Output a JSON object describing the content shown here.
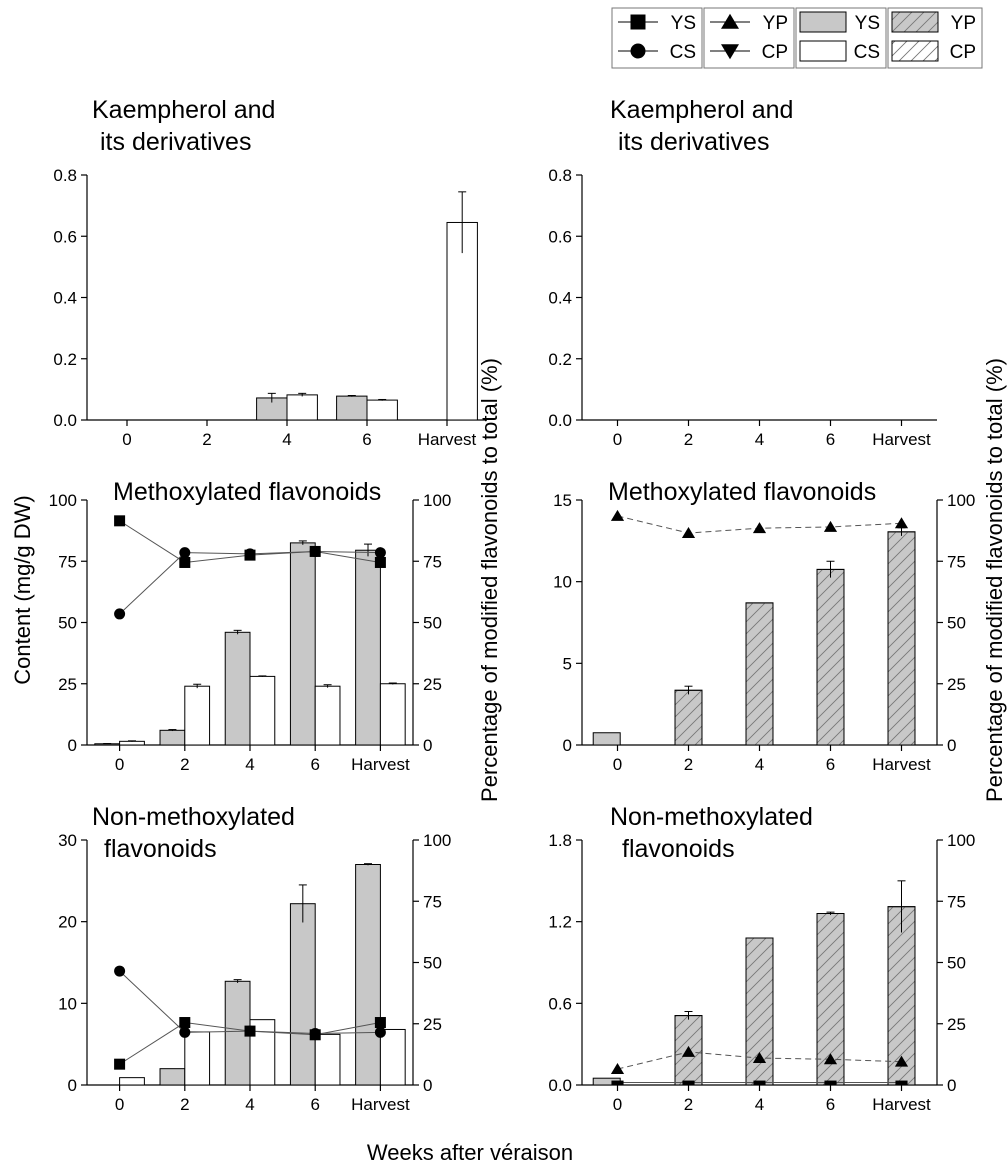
{
  "figure": {
    "xlabel": "Weeks after véraison",
    "left_ylabel": "Content (mg/g DW)",
    "right_ylabel": "Percentage of modified flavonoids to total (%)"
  },
  "legend": {
    "placement": "top-right",
    "entries": [
      {
        "label": "YS",
        "kind": "line",
        "marker": "square"
      },
      {
        "label": "CS",
        "kind": "line",
        "marker": "circle"
      },
      {
        "label": "YP",
        "kind": "line",
        "marker": "triangle-up"
      },
      {
        "label": "CP",
        "kind": "line",
        "marker": "triangle-down"
      },
      {
        "label": "YS",
        "kind": "bar",
        "fill": "#c8c8c8"
      },
      {
        "label": "CS",
        "kind": "bar",
        "fill": "#ffffff"
      },
      {
        "label": "YP",
        "kind": "bar",
        "fill": "#c8c8c8",
        "hatch": true
      },
      {
        "label": "CP",
        "kind": "bar",
        "fill": "#ffffff",
        "hatch": true
      }
    ]
  },
  "colors": {
    "bar_gray": "#c8c8c8",
    "bar_white": "#ffffff",
    "stroke": "#000000",
    "line_gray": "#555555"
  },
  "chart_data": [
    {
      "type": "bar",
      "title": "Kaempherol and\nits derivatives",
      "categories": [
        "0",
        "2",
        "4",
        "6",
        "Harvest"
      ],
      "ylim": [
        0,
        0.8
      ],
      "yticks": [
        "0.0",
        "0.2",
        "0.4",
        "0.6",
        "0.8"
      ],
      "bars": [
        {
          "name": "YS",
          "values": [
            0,
            0,
            0.072,
            0.078,
            0
          ],
          "errors": [
            0,
            0,
            0.015,
            0.002,
            0
          ]
        },
        {
          "name": "CS",
          "values": [
            0,
            0,
            0.082,
            0.065,
            0.645
          ],
          "errors": [
            0,
            0,
            0.005,
            0.002,
            0.1
          ]
        }
      ]
    },
    {
      "type": "bar",
      "title": "Kaempherol and\nits derivatives",
      "categories": [
        "0",
        "2",
        "4",
        "6",
        "Harvest"
      ],
      "ylim": [
        0,
        0.8
      ],
      "yticks": [
        "0.0",
        "0.2",
        "0.4",
        "0.6",
        "0.8"
      ],
      "bars": []
    },
    {
      "type": "bar",
      "title": "Methoxylated flavonoids",
      "categories": [
        "0",
        "2",
        "4",
        "6",
        "Harvest"
      ],
      "ylim": [
        0,
        100
      ],
      "yticks": [
        "0",
        "25",
        "50",
        "75",
        "100"
      ],
      "y2lim": [
        0,
        100
      ],
      "y2ticks": [
        "0",
        "25",
        "50",
        "75",
        "100"
      ],
      "bars": [
        {
          "name": "YS",
          "values": [
            0.5,
            6,
            46,
            82.5,
            79.5
          ],
          "errors": [
            0.1,
            0.3,
            0.8,
            0.8,
            2.5
          ]
        },
        {
          "name": "CS",
          "values": [
            1.5,
            24,
            28,
            24,
            25
          ],
          "errors": [
            0.2,
            0.8,
            0.2,
            0.6,
            0.3
          ]
        }
      ],
      "lines": [
        {
          "name": "YS",
          "values": [
            91.5,
            74.5,
            77.5,
            79,
            74.5
          ],
          "errors": [
            0,
            0,
            1,
            0,
            0
          ]
        },
        {
          "name": "CS",
          "values": [
            53.5,
            78.5,
            78,
            79,
            78.5
          ],
          "errors": [
            0,
            0,
            0,
            0,
            0
          ]
        }
      ]
    },
    {
      "type": "bar",
      "title": "Methoxylated flavonoids",
      "categories": [
        "0",
        "2",
        "4",
        "6",
        "Harvest"
      ],
      "ylim": [
        0,
        15
      ],
      "yticks": [
        "0",
        "5",
        "10",
        "15"
      ],
      "y2lim": [
        0,
        100
      ],
      "y2ticks": [
        "0",
        "25",
        "50",
        "75",
        "100"
      ],
      "bars": [
        {
          "name": "YS",
          "values": [
            0.75,
            0,
            0,
            0,
            0
          ],
          "errors": [
            0,
            0,
            0,
            0,
            0
          ]
        },
        {
          "name": "YP",
          "values": [
            0,
            3.35,
            8.7,
            10.75,
            13.05
          ],
          "errors": [
            0,
            0.25,
            0,
            0.5,
            0.25
          ]
        }
      ],
      "lines": [
        {
          "name": "YP",
          "values": [
            93.5,
            86.5,
            88.5,
            89,
            90.5
          ],
          "errors": [
            0,
            0,
            0,
            0,
            0
          ]
        }
      ]
    },
    {
      "type": "bar",
      "title": "Non-methoxylated\nflavonoids",
      "categories": [
        "0",
        "2",
        "4",
        "6",
        "Harvest"
      ],
      "ylim": [
        0,
        30
      ],
      "yticks": [
        "0",
        "10",
        "20",
        "30"
      ],
      "y2lim": [
        0,
        100
      ],
      "y2ticks": [
        "0",
        "25",
        "50",
        "75",
        "100"
      ],
      "bars": [
        {
          "name": "YS",
          "values": [
            0,
            2,
            12.7,
            22.2,
            27
          ],
          "errors": [
            0,
            0,
            0.2,
            2.3,
            0.1
          ]
        },
        {
          "name": "CS",
          "values": [
            0.9,
            6.5,
            8,
            6.2,
            6.8
          ],
          "errors": [
            0,
            0,
            0,
            0,
            0
          ]
        }
      ],
      "lines": [
        {
          "name": "YS",
          "values": [
            8.5,
            25.5,
            22,
            20.5,
            25.5
          ],
          "errors": [
            0,
            0,
            0,
            0,
            0
          ]
        },
        {
          "name": "CS",
          "values": [
            46.5,
            21.5,
            22,
            21,
            21.5
          ],
          "errors": [
            0,
            0,
            0,
            0,
            0
          ]
        }
      ]
    },
    {
      "type": "bar",
      "title": "Non-methoxylated\nflavonoids",
      "categories": [
        "0",
        "2",
        "4",
        "6",
        "Harvest"
      ],
      "ylim": [
        0,
        1.8
      ],
      "yticks": [
        "0.0",
        "0.6",
        "1.2",
        "1.8"
      ],
      "y2lim": [
        0,
        100
      ],
      "y2ticks": [
        "0",
        "25",
        "50",
        "75",
        "100"
      ],
      "bars": [
        {
          "name": "YS",
          "values": [
            0.05,
            0,
            0,
            0,
            0
          ],
          "errors": [
            0,
            0,
            0,
            0,
            0
          ]
        },
        {
          "name": "YP",
          "values": [
            0,
            0.51,
            1.08,
            1.26,
            1.31
          ],
          "errors": [
            0,
            0.03,
            0,
            0.01,
            0.19
          ]
        }
      ],
      "lines": [
        {
          "name": "YP",
          "values": [
            6.5,
            13.5,
            11,
            10.5,
            9.5
          ],
          "errors": [
            0,
            0,
            0,
            0,
            0
          ]
        },
        {
          "name": "CP",
          "values": [
            1,
            1,
            1,
            1,
            1
          ],
          "errors": [
            0,
            0,
            0,
            0,
            0
          ]
        }
      ]
    }
  ]
}
